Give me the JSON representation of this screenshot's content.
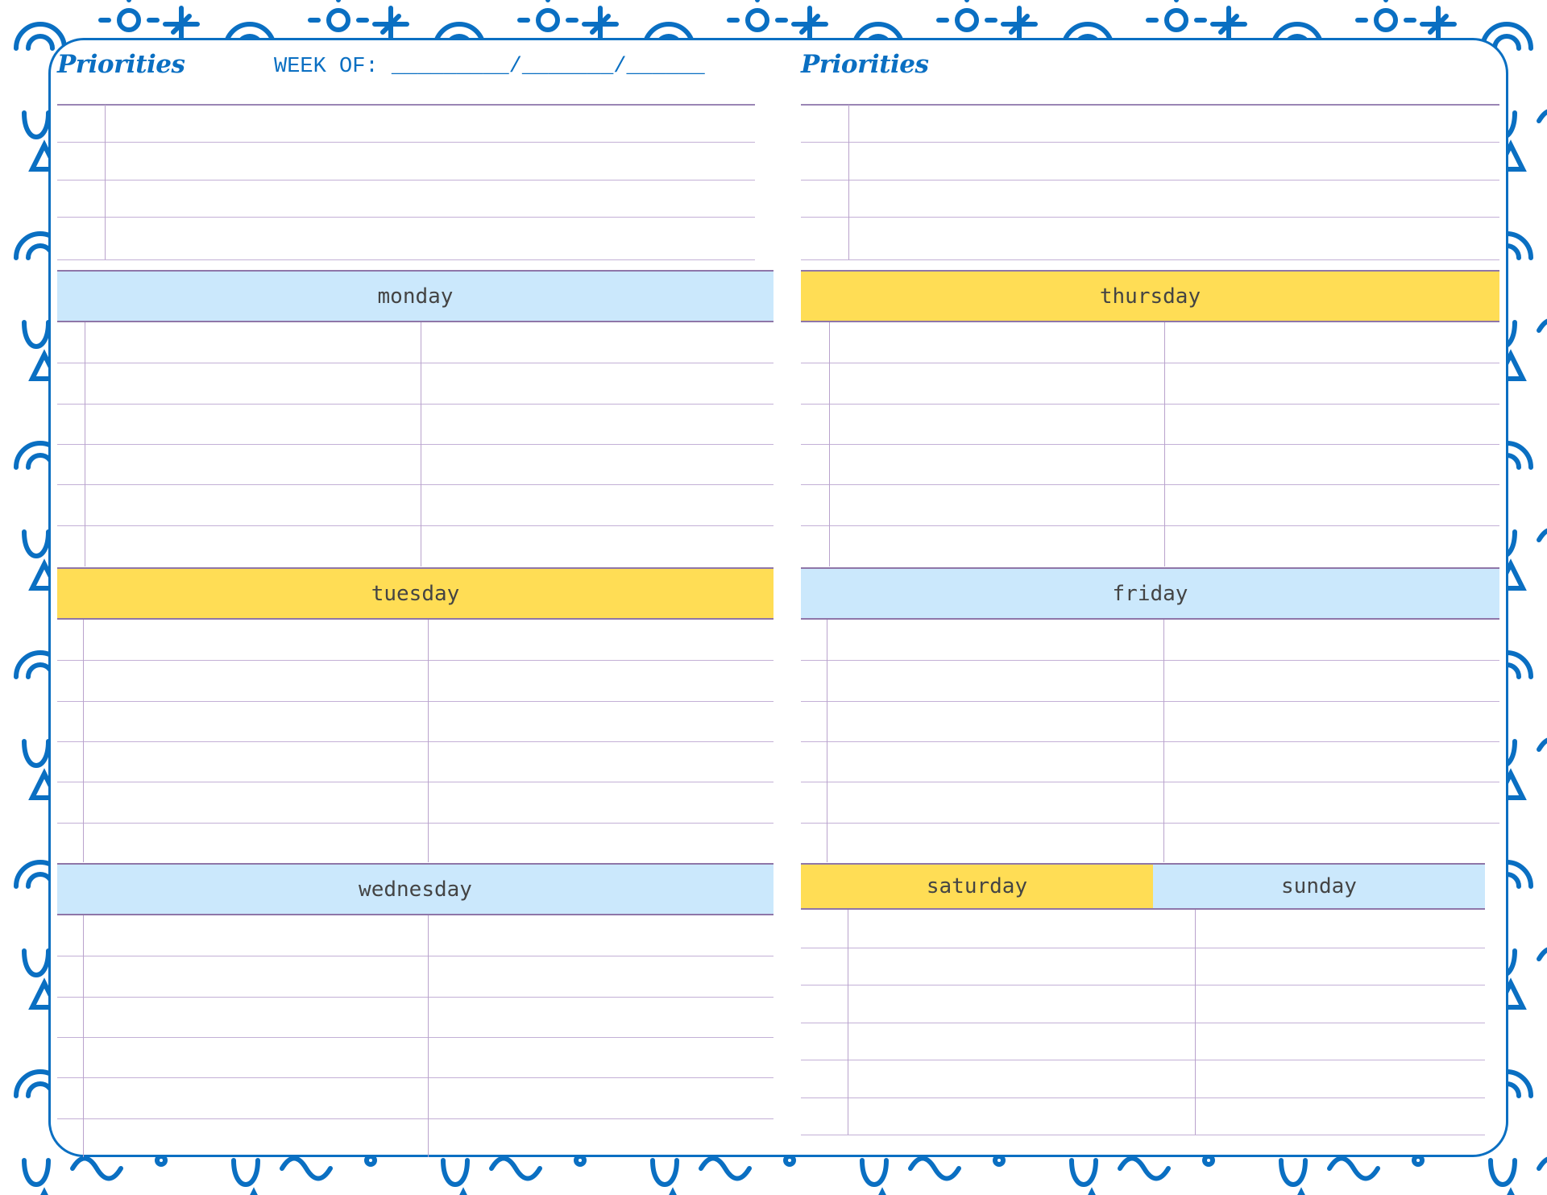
{
  "colors": {
    "brand_blue": "#0a6fc2",
    "header_blue": "#cbe8fc",
    "header_yellow": "#ffdd55",
    "rule": "#c3b0d6",
    "text": "#444444"
  },
  "left": {
    "priorities_title": "Priorities",
    "week_of": "WEEK OF: _________/_______/______"
  },
  "right": {
    "priorities_title": "Priorities"
  },
  "days": {
    "monday": {
      "label": "monday",
      "color": "blue"
    },
    "tuesday": {
      "label": "tuesday",
      "color": "yellow"
    },
    "wednesday": {
      "label": "wednesday",
      "color": "blue"
    },
    "thursday": {
      "label": "thursday",
      "color": "yellow"
    },
    "friday": {
      "label": "friday",
      "color": "blue"
    },
    "saturday": {
      "label": "saturday",
      "color": "yellow"
    },
    "sunday": {
      "label": "sunday",
      "color": "blue"
    }
  },
  "background_pattern": "blue-doodles"
}
